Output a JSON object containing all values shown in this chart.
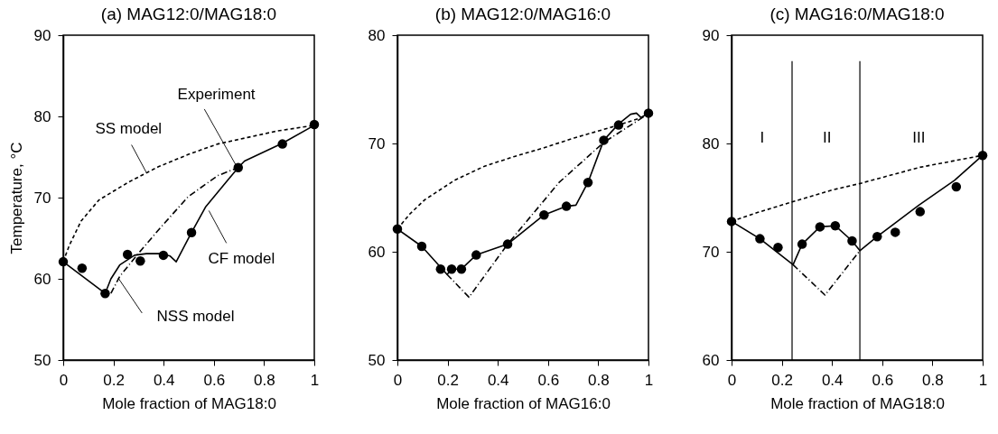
{
  "chart_data": [
    {
      "type": "line",
      "title": "(a) MAG12:0/MAG18:0",
      "xlabel": "Mole fraction of MAG18:0",
      "ylabel": "Temperature, °C",
      "xlim": [
        0,
        1
      ],
      "xticks": [
        0,
        0.2,
        0.4,
        0.6,
        0.8,
        1
      ],
      "ylim": [
        50,
        90
      ],
      "yticks": [
        50,
        60,
        70,
        80,
        90
      ],
      "grid": false,
      "series": [
        {
          "type": "scatter",
          "marker": "circle",
          "color": "#000000",
          "x": [
            0,
            0.075,
            0.167,
            0.256,
            0.307,
            0.399,
            0.511,
            0.697,
            0.873,
            1
          ],
          "values": [
            62.1,
            61.3,
            58.2,
            63.0,
            62.2,
            62.9,
            65.7,
            73.7,
            76.6,
            79.0
          ]
        },
        {
          "line_style": "solid",
          "color": "#000000",
          "x": [
            0,
            0.167,
            0.19,
            0.225,
            0.284,
            0.331,
            0.39,
            0.426,
            0.45,
            0.511,
            0.568,
            0.697,
            0.722,
            0.873,
            1
          ],
          "values": [
            62.1,
            58.2,
            60.0,
            61.7,
            62.9,
            63.1,
            63.1,
            62.8,
            62.1,
            65.7,
            68.9,
            73.7,
            74.5,
            76.7,
            78.9
          ]
        },
        {
          "line_style": "dashed",
          "color": "#000000",
          "x": [
            0,
            0.024,
            0.071,
            0.142,
            0.26,
            0.379,
            0.497,
            0.615,
            0.734,
            0.852,
            1
          ],
          "values": [
            62.1,
            64.1,
            67.1,
            69.7,
            71.9,
            73.8,
            75.3,
            76.6,
            77.4,
            78.2,
            78.9
          ]
        },
        {
          "line_style": "dashdot",
          "color": "#000000",
          "x": [
            0.19,
            0.225,
            0.296,
            0.379,
            0.497,
            0.615,
            0.697
          ],
          "values": [
            58.2,
            60.3,
            63.0,
            66.0,
            70.1,
            72.7,
            73.7
          ]
        }
      ],
      "annotations": [
        {
          "text": "Experiment",
          "x": 0.686,
          "y": 74.1
        },
        {
          "text": "SS model",
          "x": 0.331,
          "y": 73.1
        },
        {
          "text": "CF model",
          "x": 0.58,
          "y": 68.4
        },
        {
          "text": "NSS model",
          "x": 0.219,
          "y": 60.1
        }
      ]
    },
    {
      "type": "line",
      "title": "(b) MAG12:0/MAG16:0",
      "xlabel": "Mole fraction of MAG16:0",
      "xlim": [
        0,
        1
      ],
      "xticks": [
        0,
        0.2,
        0.4,
        0.6,
        0.8,
        1
      ],
      "ylim": [
        50,
        80
      ],
      "yticks": [
        50,
        60,
        70,
        80
      ],
      "grid": false,
      "series": [
        {
          "type": "scatter",
          "marker": "circle",
          "color": "#000000",
          "x": [
            0,
            0.097,
            0.172,
            0.216,
            0.255,
            0.314,
            0.439,
            0.584,
            0.673,
            0.759,
            0.822,
            0.881,
            1
          ],
          "values": [
            62.1,
            60.5,
            58.4,
            58.4,
            58.4,
            59.7,
            60.7,
            63.4,
            64.2,
            66.4,
            70.3,
            71.7,
            72.8
          ]
        },
        {
          "line_style": "solid",
          "color": "#000000",
          "x": [
            0,
            0.097,
            0.198,
            0.216,
            0.255,
            0.314,
            0.439,
            0.584,
            0.673,
            0.711,
            0.759,
            0.822,
            0.881,
            0.929,
            0.952,
            0.97,
            1
          ],
          "values": [
            62.1,
            60.5,
            57.9,
            58.4,
            58.4,
            59.7,
            60.7,
            63.4,
            64.2,
            64.3,
            66.4,
            70.3,
            71.8,
            72.7,
            72.8,
            72.4,
            72.8
          ]
        },
        {
          "line_style": "dashed",
          "color": "#000000",
          "x": [
            0,
            0.05,
            0.109,
            0.228,
            0.347,
            0.466,
            0.584,
            0.703,
            0.822,
            0.881,
            1
          ],
          "values": [
            62.1,
            63.5,
            64.8,
            66.6,
            67.9,
            68.8,
            69.6,
            70.5,
            71.3,
            71.7,
            72.6
          ]
        },
        {
          "line_style": "dashdot",
          "color": "#000000",
          "x": [
            0.198,
            0.285,
            0.439,
            0.644,
            0.822,
            0.97,
            1
          ],
          "values": [
            57.9,
            55.8,
            60.7,
            66.4,
            70.1,
            72.3,
            72.8
          ]
        }
      ]
    },
    {
      "type": "line",
      "title": "(c) MAG16:0/MAG18:0",
      "xlabel": "Mole fraction of MAG18:0",
      "xlim": [
        0,
        1
      ],
      "xticks": [
        0,
        0.2,
        0.4,
        0.6,
        0.8,
        1
      ],
      "ylim": [
        60,
        90
      ],
      "yticks": [
        60,
        70,
        80,
        90
      ],
      "grid": false,
      "series": [
        {
          "type": "scatter",
          "marker": "circle",
          "color": "#000000",
          "x": [
            0,
            0.113,
            0.185,
            0.281,
            0.352,
            0.413,
            0.48,
            0.58,
            0.652,
            0.751,
            0.895,
            1
          ],
          "values": [
            72.8,
            71.2,
            70.4,
            70.7,
            72.3,
            72.4,
            71.0,
            71.4,
            71.8,
            73.7,
            76.0,
            78.9
          ]
        },
        {
          "line_style": "solid",
          "color": "#000000",
          "x": [
            0,
            0.113,
            0.245,
            0.281,
            0.352,
            0.413,
            0.48,
            0.511,
            0.58,
            0.746,
            0.888,
            1
          ],
          "values": [
            72.8,
            71.2,
            68.8,
            70.7,
            72.3,
            72.4,
            71.0,
            70.1,
            71.4,
            74.3,
            76.6,
            78.9
          ]
        },
        {
          "line_style": "dashed",
          "color": "#000000",
          "x": [
            0,
            0.1,
            0.241,
            0.4,
            0.511,
            0.75,
            1
          ],
          "values": [
            72.8,
            73.6,
            74.6,
            75.7,
            76.3,
            77.8,
            78.9
          ]
        },
        {
          "line_style": "dashdot",
          "color": "#000000",
          "x": [
            0.245,
            0.372,
            0.511
          ],
          "values": [
            68.8,
            66.0,
            70.1
          ]
        }
      ],
      "ref_lines": [
        {
          "axis": "x",
          "value": 0.241,
          "color": "#000000"
        },
        {
          "axis": "x",
          "value": 0.511,
          "color": "#000000"
        }
      ],
      "annotations": [
        "I",
        "II",
        "III"
      ]
    }
  ]
}
